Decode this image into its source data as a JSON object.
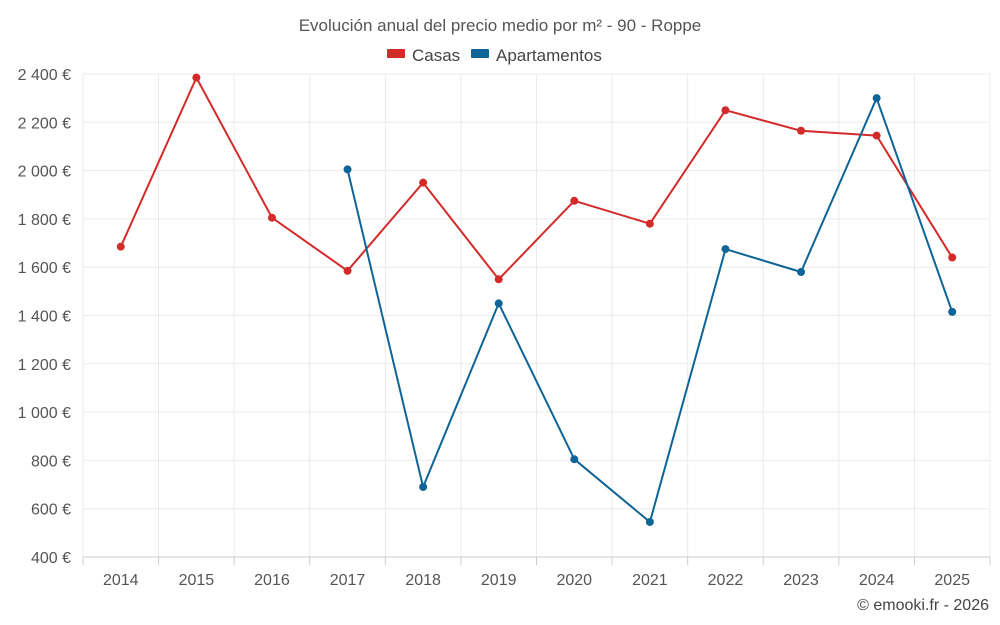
{
  "chart_data": {
    "type": "line",
    "title": "Evolución anual del precio medio por m² - 90 - Roppe",
    "categories": [
      "2014",
      "2015",
      "2016",
      "2017",
      "2018",
      "2019",
      "2020",
      "2021",
      "2022",
      "2023",
      "2024",
      "2025"
    ],
    "series": [
      {
        "name": "Casas",
        "color": "#d32a2a",
        "values": [
          1685,
          2385,
          1805,
          1585,
          1950,
          1550,
          1875,
          1780,
          2250,
          2165,
          2145,
          1640
        ]
      },
      {
        "name": "Apartamentos",
        "color": "#0e6497",
        "values": [
          null,
          null,
          null,
          2005,
          690,
          1450,
          805,
          545,
          1675,
          1580,
          2300,
          1415
        ]
      }
    ],
    "yticks": [
      "400 €",
      "600 €",
      "800 €",
      "1 000 €",
      "1 200 €",
      "1 400 €",
      "1 600 €",
      "1 800 €",
      "2 000 €",
      "2 200 €",
      "2 400 €"
    ],
    "ylim": [
      400,
      2400
    ],
    "ystep": 200,
    "grid": true,
    "legend_position": "top-center",
    "credit": "© emooki.fr - 2026"
  }
}
